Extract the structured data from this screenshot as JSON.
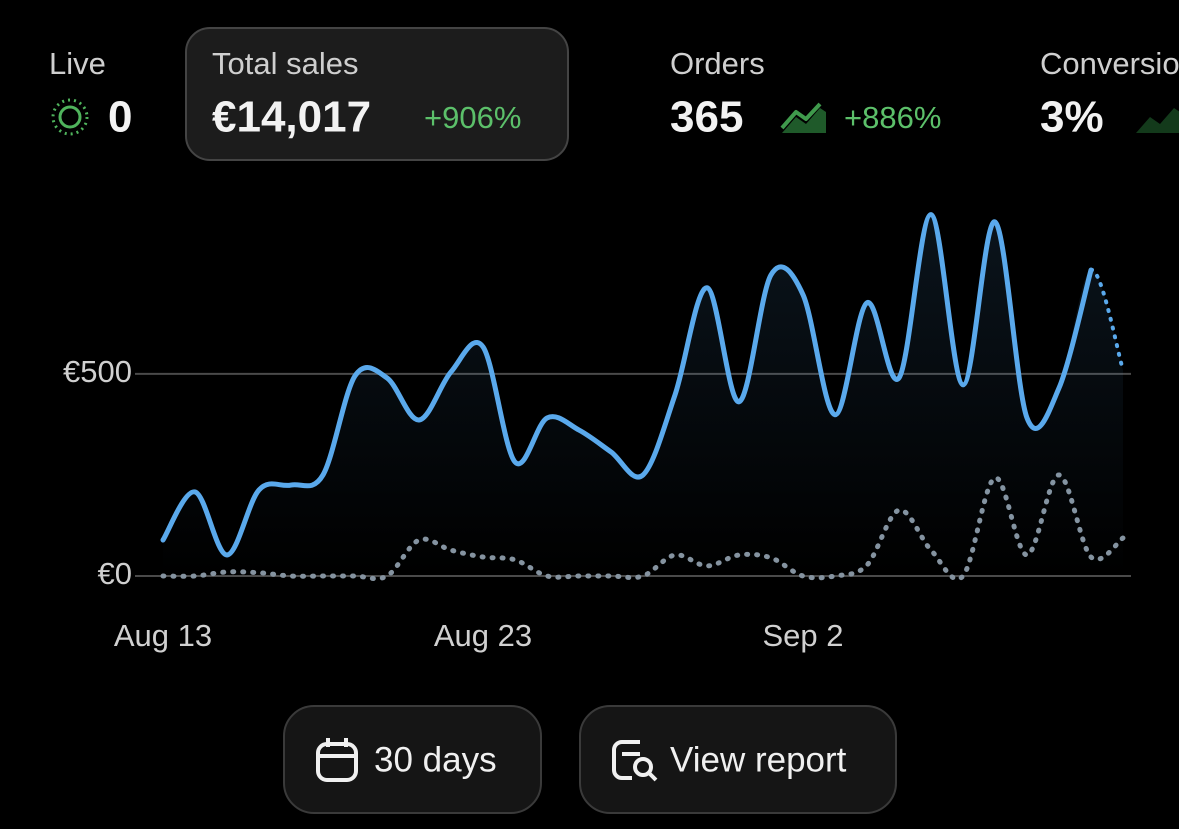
{
  "metrics": [
    {
      "label": "Live",
      "value": "0"
    },
    {
      "label": "Total sales",
      "value": "€14,017",
      "change": "+906%"
    },
    {
      "label": "Orders",
      "value": "365",
      "change": "+886%"
    },
    {
      "label": "Conversion",
      "value": "3%"
    }
  ],
  "chart_data": {
    "type": "line",
    "categories": [
      "Aug 13",
      null,
      null,
      null,
      null,
      null,
      null,
      null,
      null,
      null,
      "Aug 23",
      null,
      null,
      null,
      null,
      null,
      null,
      null,
      null,
      null,
      "Sep 2",
      null,
      null,
      null,
      null,
      null,
      null,
      null,
      null,
      null,
      null
    ],
    "series": [
      {
        "color": "#5aa9ec",
        "style": "solid",
        "partial_last": true,
        "values": [
          89,
          208,
          52,
          213,
          225,
          250,
          495,
          490,
          386,
          505,
          567,
          282,
          391,
          361,
          307,
          250,
          448,
          713,
          431,
          745,
          696,
          399,
          676,
          490,
          894,
          473,
          876,
          391,
          465,
          757,
          510
        ]
      },
      {
        "color": "#8593a0",
        "style": "dotted",
        "values": [
          0,
          0,
          10,
          8,
          0,
          0,
          0,
          0,
          89,
          64,
          47,
          40,
          0,
          0,
          0,
          0,
          52,
          25,
          52,
          45,
          0,
          0,
          27,
          163,
          64,
          0,
          243,
          52,
          250,
          47,
          94
        ]
      }
    ],
    "ylim": [
      0,
      950
    ],
    "yticks": [
      {
        "value": 0,
        "label": "€0"
      },
      {
        "value": 500,
        "label": "€500"
      }
    ],
    "grid": true
  },
  "buttons": [
    {
      "label": "30 days"
    },
    {
      "label": "View report"
    }
  ]
}
